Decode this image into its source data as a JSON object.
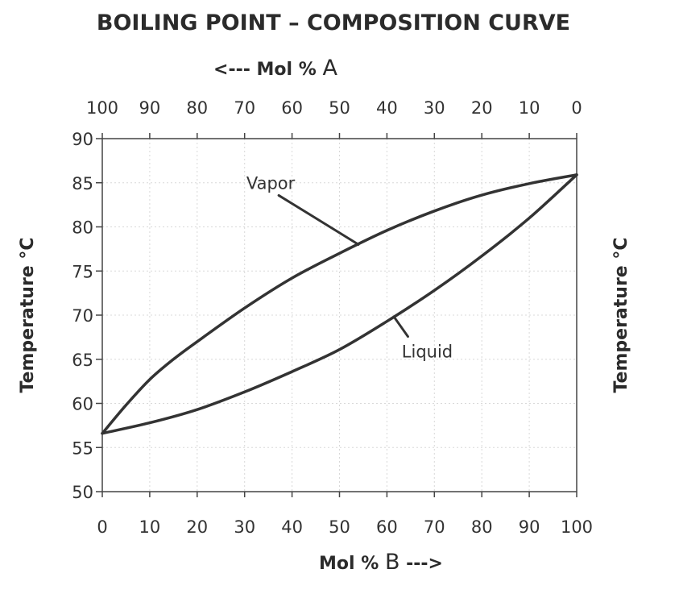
{
  "chart_data": {
    "type": "line",
    "title": "BOILING POINT – COMPOSITION CURVE",
    "top_axis_label": {
      "prefix": "<---  Mol % ",
      "suffix": "A"
    },
    "xlabel": {
      "prefix": "Mol % ",
      "letter": "B",
      "suffix": " --->"
    },
    "ylabel": "Temperature °C",
    "ylabel_right": "Temperature °C",
    "xlim": [
      0,
      100
    ],
    "ylim": [
      50,
      90
    ],
    "x_ticks": [
      "0",
      "10",
      "20",
      "30",
      "40",
      "50",
      "60",
      "70",
      "80",
      "90",
      "100"
    ],
    "top_ticks": [
      "100",
      "90",
      "80",
      "70",
      "60",
      "50",
      "40",
      "30",
      "20",
      "10",
      "0"
    ],
    "y_ticks": [
      "90",
      "85",
      "80",
      "75",
      "70",
      "65",
      "60",
      "55",
      "50"
    ],
    "grid": false,
    "series": [
      {
        "name": "Vapor",
        "x": [
          0,
          5,
          10,
          15,
          20,
          30,
          40,
          50,
          60,
          70,
          80,
          90,
          100
        ],
        "y": [
          56.6,
          59.8,
          62.7,
          65.0,
          67.0,
          70.8,
          74.2,
          77.0,
          79.6,
          81.8,
          83.6,
          84.9,
          85.9
        ]
      },
      {
        "name": "Liquid",
        "x": [
          0,
          10,
          20,
          30,
          40,
          50,
          60,
          70,
          80,
          90,
          100
        ],
        "y": [
          56.6,
          57.8,
          59.3,
          61.3,
          63.6,
          66.1,
          69.3,
          72.8,
          76.7,
          81.0,
          85.9
        ]
      }
    ],
    "annotations": [
      {
        "text": "Vapor",
        "series": "Vapor",
        "label_x": 35.5,
        "label_y": 84.3,
        "tip_x": 54.0,
        "tip_y": 78.0
      },
      {
        "text": "Liquid",
        "series": "Liquid",
        "label_x": 68.5,
        "label_y": 65.2,
        "tip_x": 61.5,
        "tip_y": 69.8
      }
    ]
  }
}
